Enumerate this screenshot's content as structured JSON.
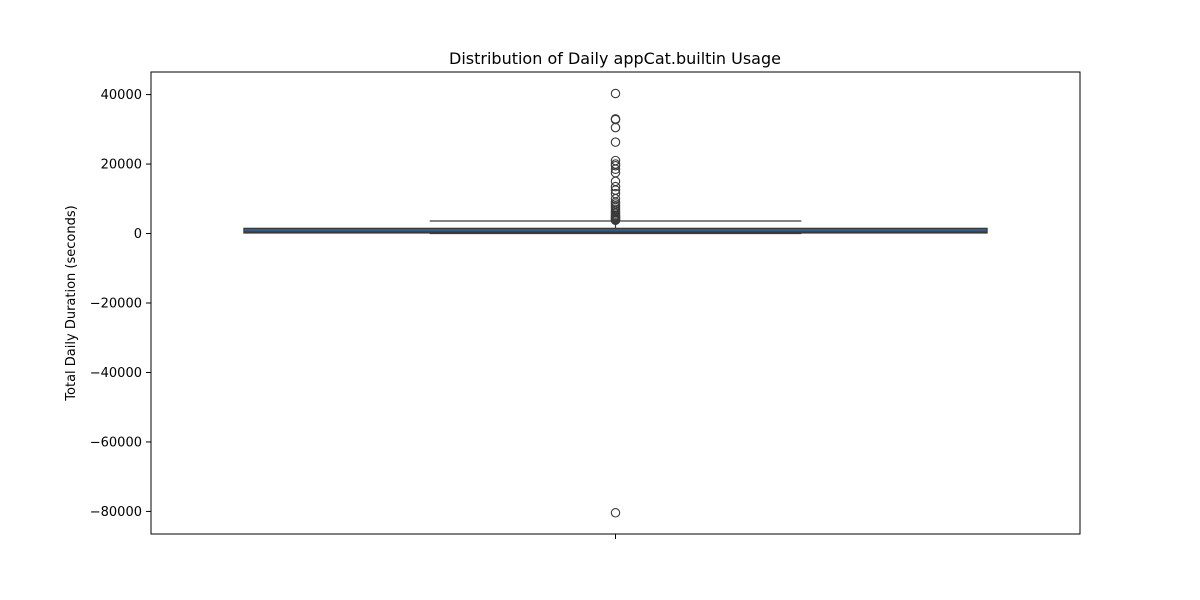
{
  "chart_data": {
    "type": "box",
    "title": "Distribution of Daily appCat.builtin Usage",
    "xlabel": "",
    "ylabel": "Total Daily Duration (seconds)",
    "ylim": [
      -86500,
      46500
    ],
    "yticks": [
      40000,
      20000,
      0,
      -20000,
      -40000,
      -60000,
      -80000
    ],
    "ytick_labels": [
      "40000",
      "20000",
      "0",
      "−20000",
      "−40000",
      "−60000",
      "−80000"
    ],
    "box": {
      "q1": 150,
      "median": 450,
      "q3": 1500,
      "whisker_low": 0,
      "whisker_high": 3600
    },
    "outliers": [
      40300,
      33000,
      32800,
      30500,
      26300,
      21000,
      20000,
      19500,
      18500,
      17500,
      15000,
      13500,
      12500,
      11500,
      10000,
      9000,
      8500,
      8000,
      7500,
      7000,
      6500,
      6000,
      5600,
      5200,
      4900,
      4600,
      4300,
      4100,
      3900,
      3800,
      -80400
    ],
    "colors": {
      "box_fill": "#3a5a80",
      "box_edge": "#3a3a3a",
      "outlier_edge": "#3a3a3a"
    },
    "grid": false
  }
}
